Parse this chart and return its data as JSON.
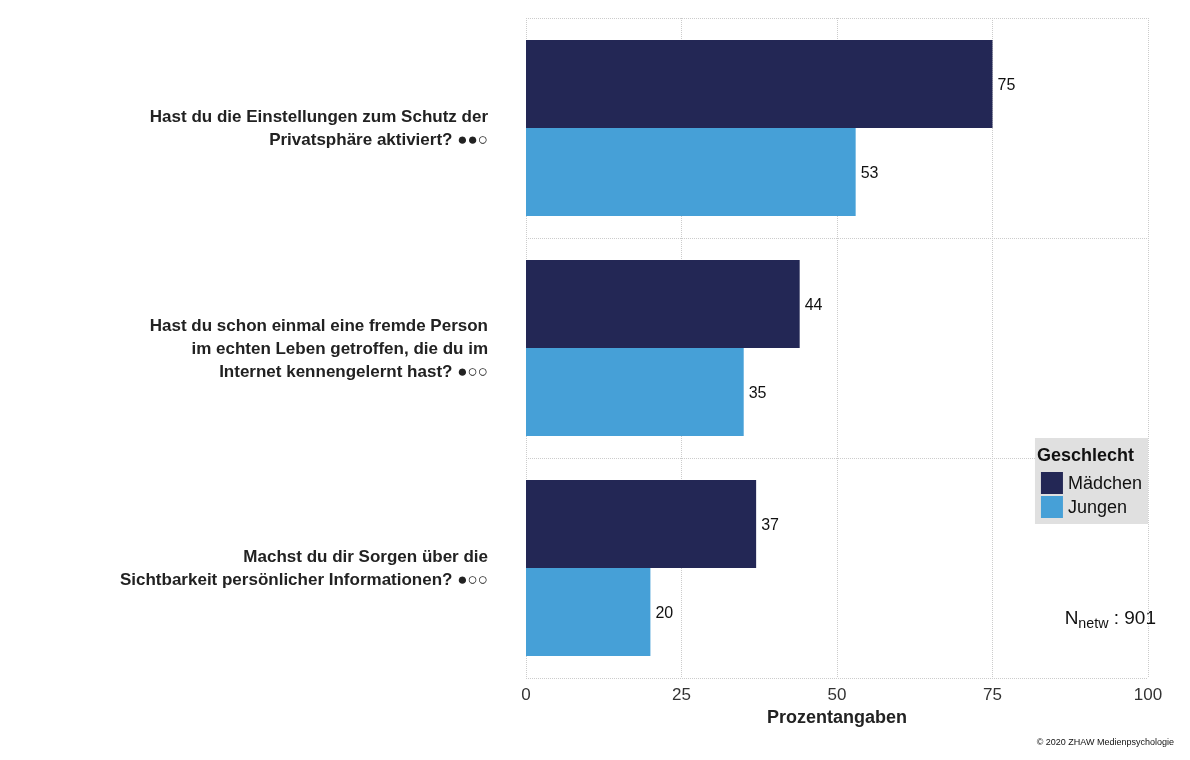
{
  "chart_data": {
    "type": "bar",
    "orientation": "horizontal",
    "categories": [
      "Hast du die Einstellungen zum Schutz der\nPrivatsphäre aktiviert? ●●○",
      "Hast du schon einmal eine fremde Person\nim echten Leben getroffen, die du im\nInternet kennengelernt hast? ●○○",
      "Machst du dir Sorgen über die\nSichtbarkeit persönlicher Informationen? ●○○"
    ],
    "series": [
      {
        "name": "Mädchen",
        "color": "#232755",
        "values": [
          75,
          44,
          37
        ]
      },
      {
        "name": "Jungen",
        "color": "#46a0d7",
        "values": [
          53,
          35,
          20
        ]
      }
    ],
    "xlabel": "Prozentangaben",
    "xlim": [
      0,
      100
    ],
    "xticks": [
      0,
      25,
      50,
      75,
      100
    ],
    "legend_title": "Geschlecht",
    "legend": "right",
    "grid": true,
    "data_labels": true,
    "annotations": [
      "N$_{netw}$ : 901",
      "© 2020 ZHAW Medienpsychologie"
    ]
  }
}
